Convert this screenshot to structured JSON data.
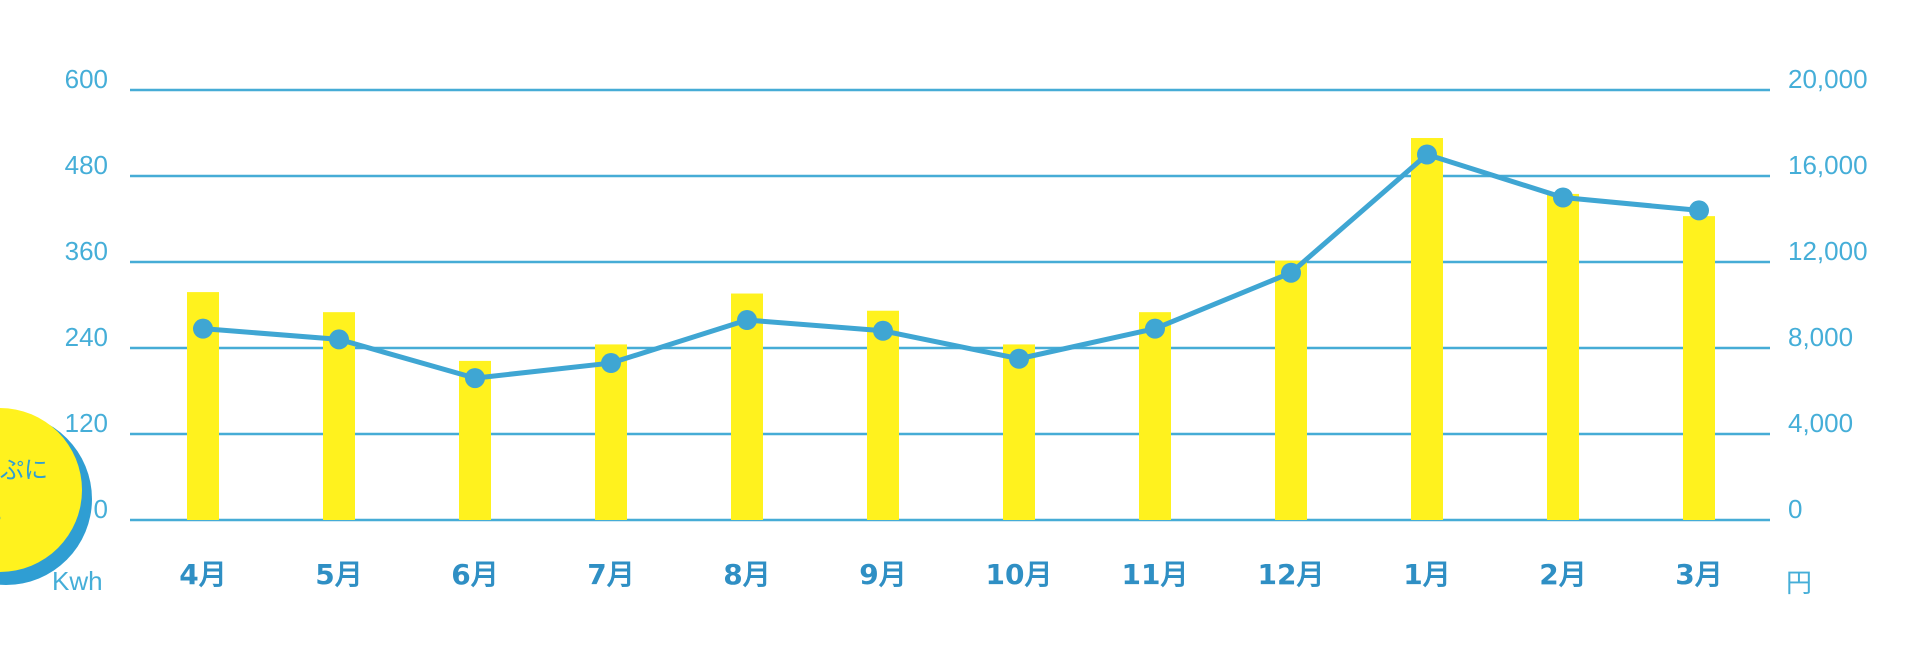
{
  "colors": {
    "bar": "#fff21e",
    "line": "#3fa6d3",
    "grid": "#46acd6",
    "axis_text": "#45aed8",
    "month_text": "#2f8fc4",
    "badge_fill": "#fff21e",
    "badge_ring": "#2f9ed3",
    "badge_text": "#2f9ed3"
  },
  "badge": {
    "line1": "ぷに",
    "line2": "。"
  },
  "chart_data": {
    "type": "bar+line",
    "categories": [
      "4月",
      "5月",
      "6月",
      "7月",
      "8月",
      "9月",
      "10月",
      "11月",
      "12月",
      "1月",
      "2月",
      "3月"
    ],
    "series": [
      {
        "type": "bar",
        "axis": "left",
        "values": [
          318,
          290,
          222,
          245,
          316,
          292,
          245,
          290,
          362,
          533,
          455,
          424
        ]
      },
      {
        "type": "line",
        "axis": "right",
        "values": [
          8900,
          8400,
          6600,
          7300,
          9300,
          8800,
          7500,
          8900,
          11500,
          17000,
          15000,
          14400
        ]
      }
    ],
    "left_axis": {
      "unit": "Kwh",
      "range": [
        0,
        600
      ],
      "ticks": [
        "0",
        "120",
        "240",
        "360",
        "480",
        "600"
      ]
    },
    "right_axis": {
      "unit": "円",
      "range": [
        0,
        20000
      ],
      "ticks": [
        "0",
        "4,000",
        "8,000",
        "12,000",
        "16,000",
        "20,000"
      ]
    },
    "grid": true,
    "legend": "none"
  }
}
